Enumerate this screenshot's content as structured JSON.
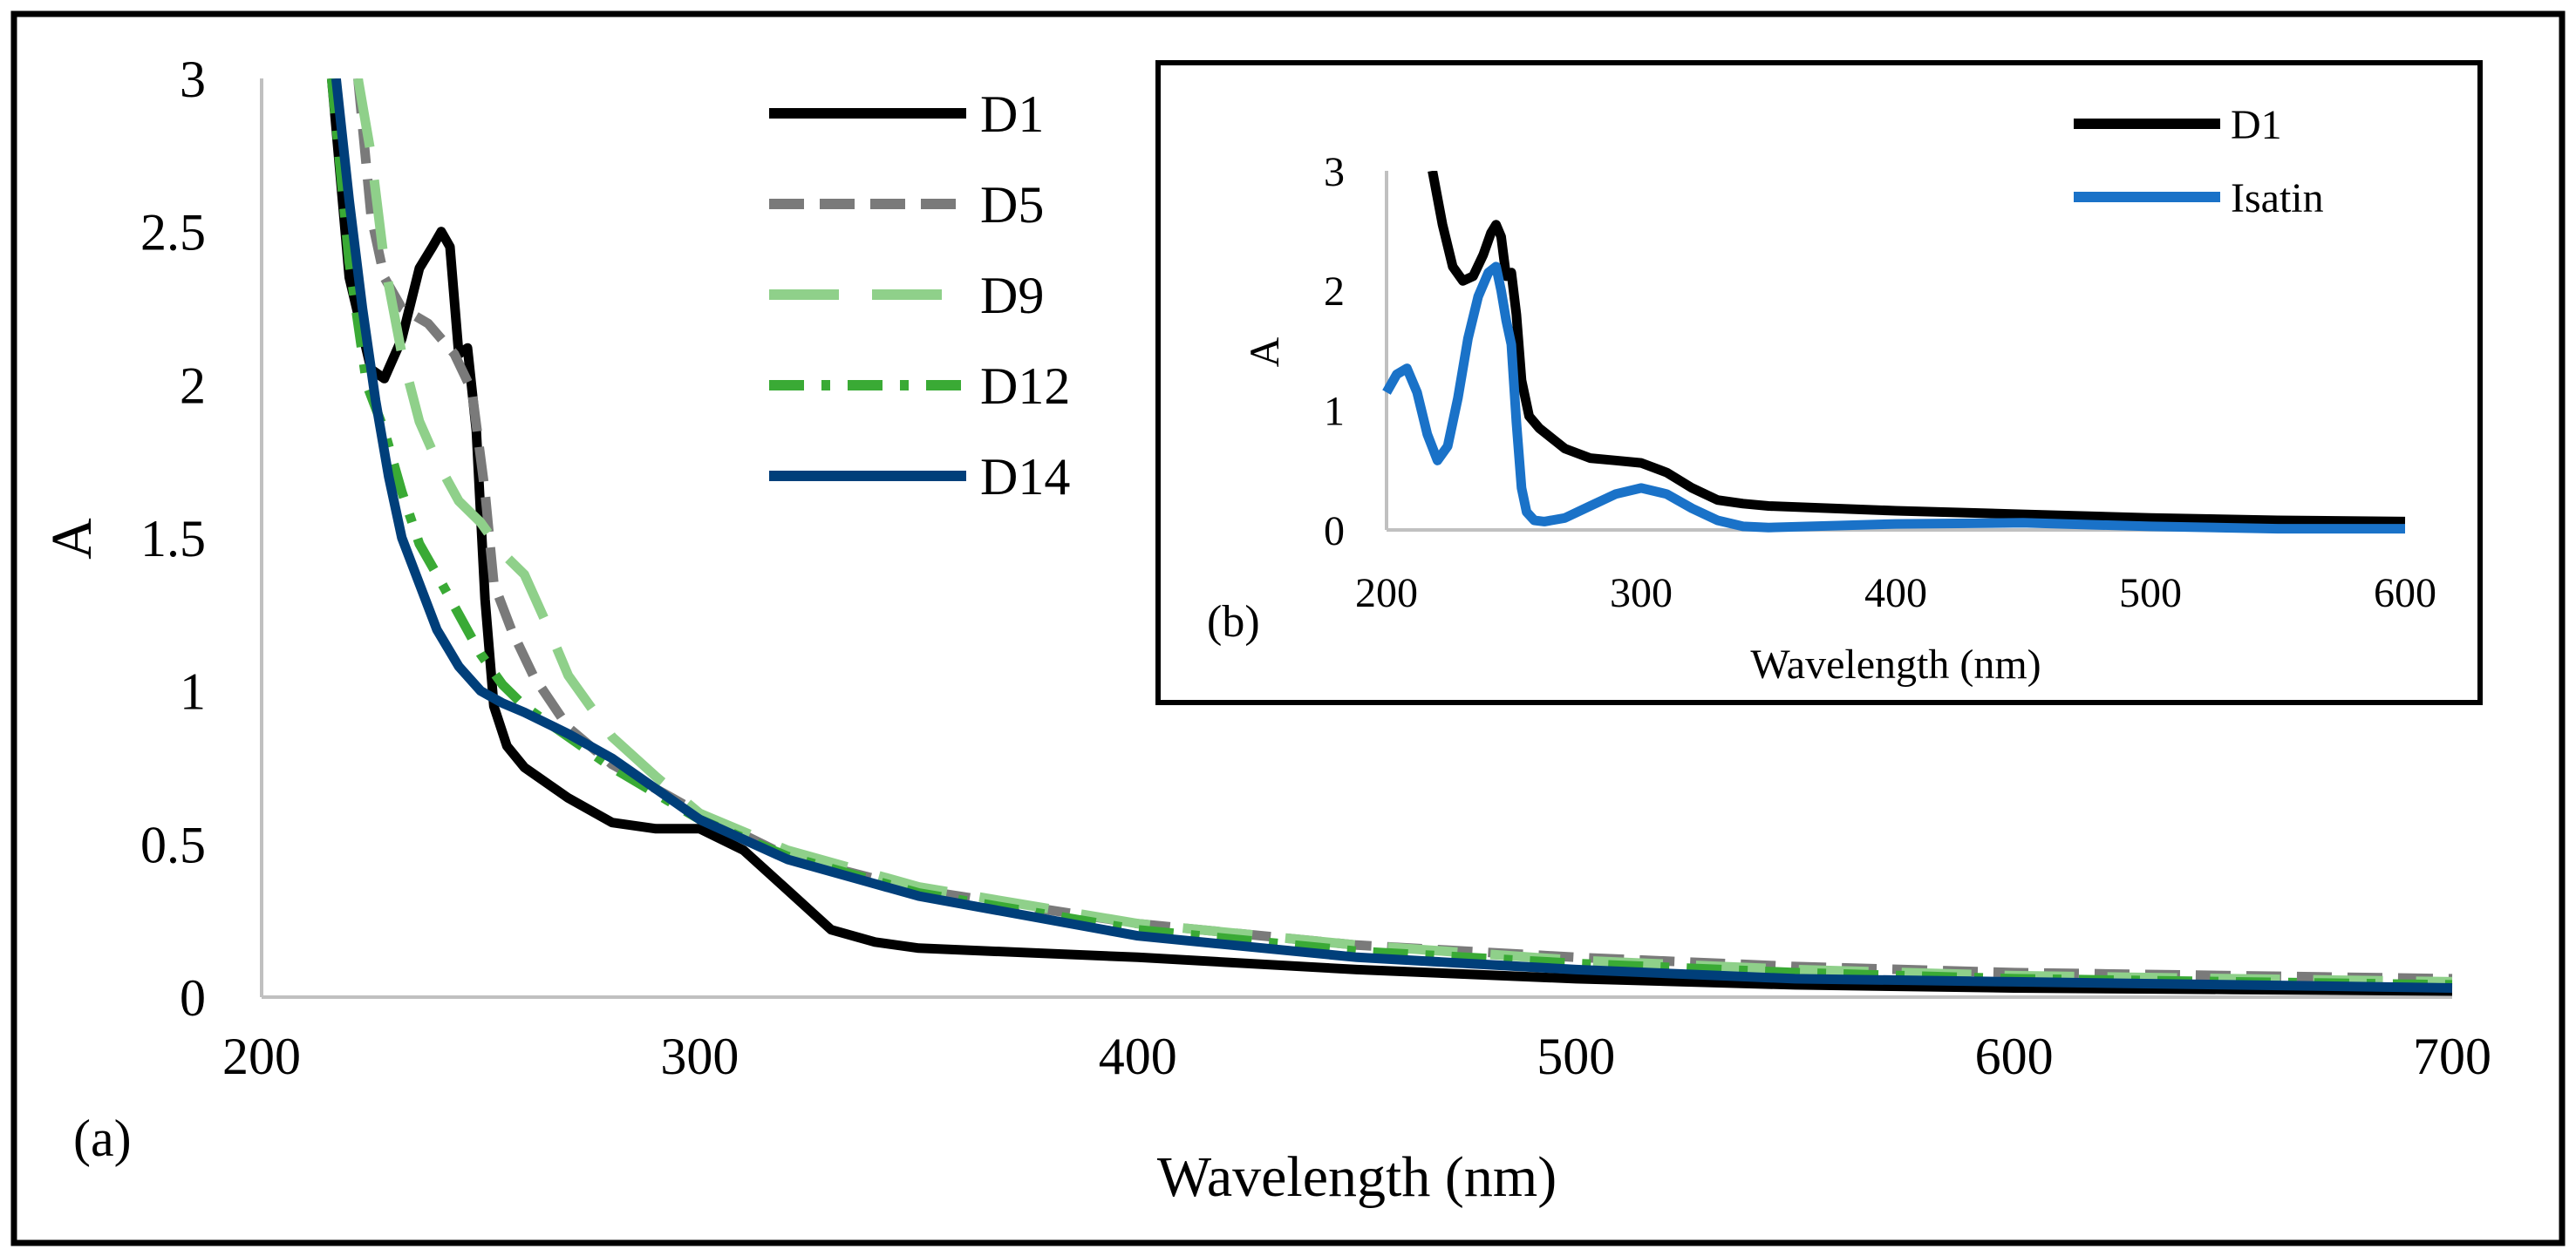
{
  "chart_data": [
    {
      "panel": "(a)",
      "type": "line",
      "title": "",
      "xlabel": "Wavelength (nm)",
      "ylabel": "A",
      "xlim": [
        200,
        700
      ],
      "ylim": [
        0,
        3
      ],
      "xticks": [
        "200",
        "300",
        "400",
        "500",
        "600",
        "700"
      ],
      "yticks": [
        "0",
        "0.5",
        "1",
        "1.5",
        "2",
        "2.5",
        "3"
      ],
      "grid": false,
      "legend_position": "top-center",
      "series": [
        {
          "name": "D1",
          "color": "#000000",
          "dash": "solid",
          "x": [
            216,
            220,
            225,
            228,
            232,
            236,
            239,
            241,
            243,
            245,
            247,
            249,
            251,
            253,
            256,
            260,
            270,
            280,
            290,
            300,
            310,
            320,
            330,
            340,
            350,
            400,
            450,
            500,
            550,
            600,
            650,
            700
          ],
          "y": [
            3.0,
            2.35,
            2.05,
            2.02,
            2.15,
            2.38,
            2.45,
            2.5,
            2.45,
            2.1,
            2.12,
            1.85,
            1.3,
            0.95,
            0.82,
            0.75,
            0.65,
            0.57,
            0.55,
            0.55,
            0.48,
            0.35,
            0.22,
            0.18,
            0.16,
            0.13,
            0.09,
            0.06,
            0.04,
            0.03,
            0.025,
            0.02
          ]
        },
        {
          "name": "D5",
          "color": "#7a7a7a",
          "dash": "long-dash",
          "x": [
            222,
            225,
            228,
            232,
            238,
            244,
            248,
            251,
            253,
            257,
            262,
            270,
            280,
            300,
            320,
            350,
            400,
            450,
            500,
            550,
            600,
            650,
            700
          ],
          "y": [
            3.0,
            2.55,
            2.35,
            2.25,
            2.2,
            2.1,
            1.98,
            1.65,
            1.35,
            1.2,
            1.05,
            0.88,
            0.76,
            0.6,
            0.46,
            0.35,
            0.24,
            0.17,
            0.13,
            0.1,
            0.08,
            0.07,
            0.06
          ]
        },
        {
          "name": "D9",
          "color": "#8fd08a",
          "dash": "long-gap",
          "x": [
            222,
            225,
            228,
            232,
            236,
            240,
            245,
            250,
            255,
            260,
            265,
            270,
            280,
            290,
            300,
            320,
            350,
            400,
            450,
            500,
            550,
            600,
            650,
            700
          ],
          "y": [
            3.0,
            2.75,
            2.4,
            2.1,
            1.88,
            1.75,
            1.62,
            1.55,
            1.45,
            1.38,
            1.22,
            1.05,
            0.85,
            0.72,
            0.6,
            0.48,
            0.36,
            0.24,
            0.17,
            0.12,
            0.09,
            0.07,
            0.06,
            0.05
          ]
        },
        {
          "name": "D12",
          "color": "#3aaa35",
          "dash": "dash-dot",
          "x": [
            216,
            220,
            224,
            228,
            232,
            236,
            240,
            245,
            250,
            255,
            260,
            270,
            280,
            300,
            320,
            350,
            400,
            450,
            500,
            550,
            600,
            650,
            700
          ],
          "y": [
            3.0,
            2.4,
            2.0,
            1.85,
            1.65,
            1.48,
            1.38,
            1.25,
            1.12,
            1.02,
            0.95,
            0.85,
            0.75,
            0.58,
            0.46,
            0.34,
            0.22,
            0.15,
            0.11,
            0.08,
            0.06,
            0.05,
            0.04
          ]
        },
        {
          "name": "D14",
          "color": "#003f7a",
          "dash": "solid",
          "x": [
            217,
            220,
            223,
            226,
            229,
            232,
            236,
            240,
            245,
            250,
            255,
            260,
            270,
            280,
            290,
            300,
            320,
            350,
            400,
            450,
            500,
            550,
            600,
            650,
            700
          ],
          "y": [
            3.0,
            2.6,
            2.25,
            1.95,
            1.7,
            1.5,
            1.35,
            1.2,
            1.08,
            1.0,
            0.96,
            0.93,
            0.86,
            0.78,
            0.68,
            0.58,
            0.45,
            0.33,
            0.2,
            0.13,
            0.09,
            0.06,
            0.05,
            0.04,
            0.03
          ]
        }
      ]
    },
    {
      "panel": "(b)",
      "type": "line",
      "title": "",
      "xlabel": "Wavelength (nm)",
      "ylabel": "A",
      "xlim": [
        200,
        600
      ],
      "ylim": [
        0,
        3
      ],
      "xticks": [
        "200",
        "300",
        "400",
        "500",
        "600"
      ],
      "yticks": [
        "0",
        "1",
        "2",
        "3"
      ],
      "grid": false,
      "legend_position": "top-right",
      "series": [
        {
          "name": "D1",
          "color": "#000000",
          "dash": "solid",
          "x": [
            218,
            222,
            226,
            230,
            234,
            238,
            241,
            243,
            245,
            247,
            249,
            251,
            253,
            256,
            260,
            270,
            280,
            290,
            300,
            310,
            320,
            330,
            340,
            350,
            400,
            450,
            500,
            550,
            600
          ],
          "y": [
            3.0,
            2.55,
            2.2,
            2.08,
            2.12,
            2.3,
            2.48,
            2.55,
            2.45,
            2.12,
            2.15,
            1.8,
            1.25,
            0.95,
            0.85,
            0.68,
            0.6,
            0.58,
            0.56,
            0.48,
            0.35,
            0.25,
            0.22,
            0.2,
            0.16,
            0.13,
            0.1,
            0.08,
            0.07
          ]
        },
        {
          "name": "Isatin",
          "color": "#1a72c8",
          "dash": "solid",
          "x": [
            200,
            204,
            208,
            212,
            216,
            220,
            224,
            228,
            232,
            236,
            240,
            243,
            245,
            247,
            249,
            251,
            253,
            255,
            258,
            262,
            270,
            280,
            290,
            300,
            310,
            320,
            330,
            340,
            350,
            400,
            450,
            500,
            550,
            600
          ],
          "y": [
            1.15,
            1.3,
            1.35,
            1.15,
            0.8,
            0.58,
            0.7,
            1.1,
            1.6,
            1.95,
            2.15,
            2.2,
            2.0,
            1.75,
            1.55,
            0.9,
            0.35,
            0.15,
            0.08,
            0.07,
            0.1,
            0.2,
            0.3,
            0.35,
            0.3,
            0.18,
            0.08,
            0.03,
            0.02,
            0.05,
            0.06,
            0.03,
            0.01,
            0.01
          ]
        }
      ]
    }
  ]
}
